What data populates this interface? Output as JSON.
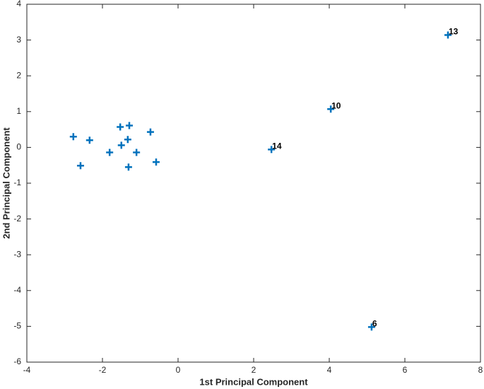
{
  "chart_data": {
    "type": "scatter",
    "xlabel": "1st Principal Component",
    "ylabel": "2nd Principal Component",
    "x": [
      -2.77,
      -2.34,
      -2.58,
      -1.81,
      -1.53,
      -1.29,
      -1.5,
      -1.33,
      -1.1,
      -1.31,
      -0.73,
      -0.58,
      2.47,
      4.04,
      7.14,
      5.12
    ],
    "values": [
      0.3,
      0.2,
      -0.51,
      -0.14,
      0.57,
      0.61,
      0.06,
      0.22,
      -0.14,
      -0.55,
      0.43,
      -0.41,
      -0.06,
      1.07,
      3.14,
      -5.02
    ],
    "point_labels": [
      null,
      null,
      null,
      null,
      null,
      null,
      null,
      null,
      null,
      null,
      null,
      null,
      14,
      10,
      13,
      6
    ],
    "color": "#0072bd",
    "xlim": [
      -4,
      8
    ],
    "xticks": [
      -4,
      -2,
      0,
      2,
      4,
      6,
      8
    ],
    "ylim": [
      -6,
      4
    ],
    "yticks": [
      -6,
      -5,
      -4,
      -3,
      -2,
      -1,
      0,
      1,
      2,
      3,
      4
    ]
  }
}
